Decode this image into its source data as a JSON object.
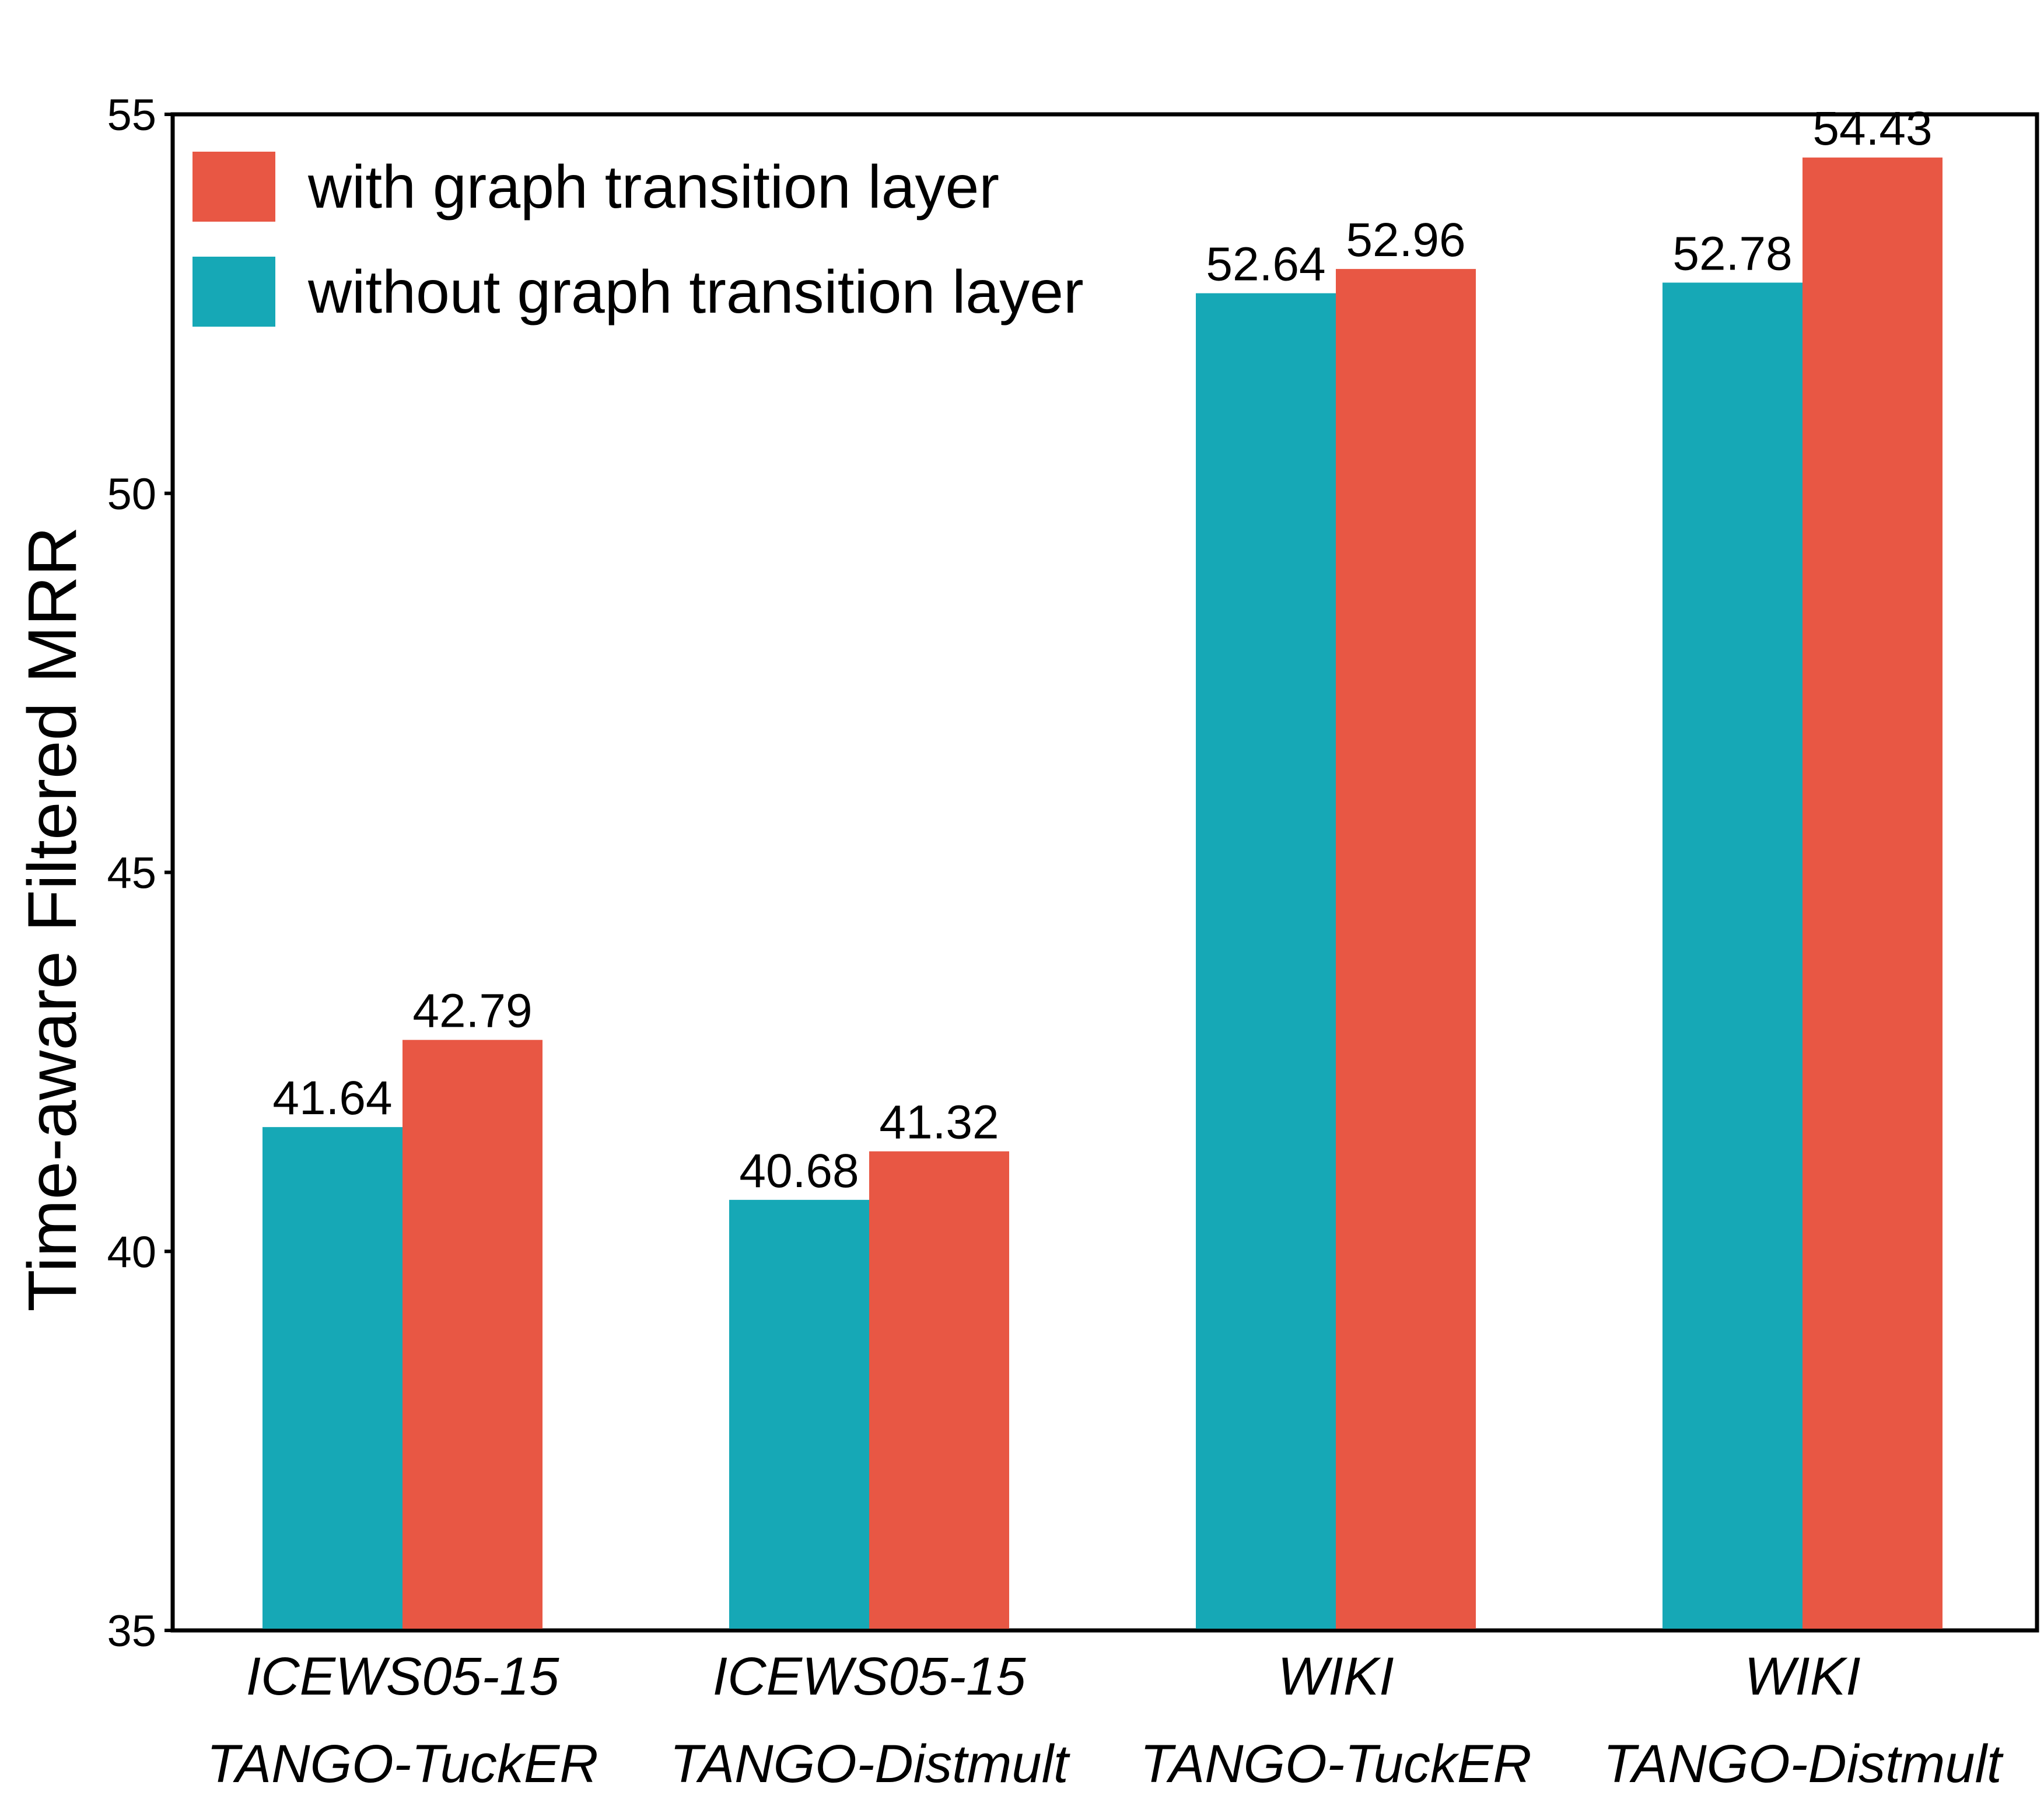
{
  "chart_data": {
    "type": "bar",
    "title": "",
    "xlabel": "",
    "ylabel": "Time-aware Filtered MRR",
    "ylim": [
      35,
      55
    ],
    "yticks": [
      35,
      40,
      45,
      50,
      55
    ],
    "grid": false,
    "legend_position": "top-left",
    "categories": [
      [
        "ICEWS05-15",
        "TANGO-TuckER"
      ],
      [
        "ICEWS05-15",
        "TANGO-Distmult"
      ],
      [
        "WIKI",
        "TANGO-TuckER"
      ],
      [
        "WIKI",
        "TANGO-Distmult"
      ]
    ],
    "series": [
      {
        "name": "without graph transition layer",
        "color": "#16a8b6",
        "values": [
          41.64,
          40.68,
          52.64,
          52.78
        ],
        "labels": [
          "41.64",
          "40.68",
          "52.64",
          "52.78"
        ]
      },
      {
        "name": "with graph transition layer",
        "color": "#e85744",
        "values": [
          42.79,
          41.32,
          52.96,
          54.43
        ],
        "labels": [
          "42.79",
          "41.32",
          "52.96",
          "54.43"
        ]
      }
    ],
    "legend_order": [
      1,
      0
    ]
  }
}
